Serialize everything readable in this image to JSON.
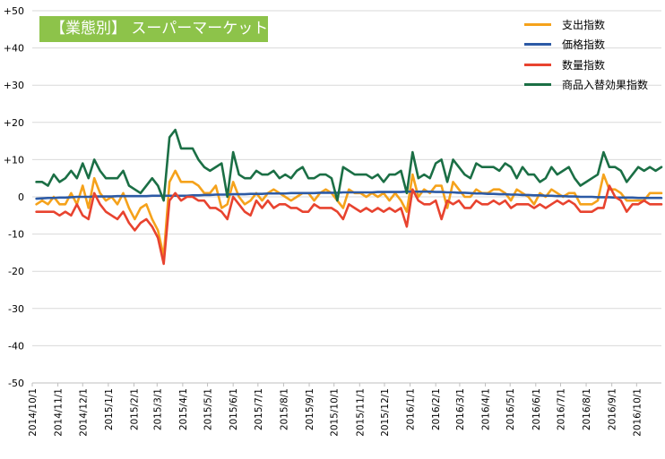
{
  "chart_data": {
    "type": "line",
    "title": "【業態別】 スーパーマーケット",
    "ylim": [
      -50,
      50
    ],
    "y_ticks": [
      "+50",
      "+40",
      "+30",
      "+20",
      "+10",
      "0",
      "-10",
      "-20",
      "-30",
      "-40",
      "-50"
    ],
    "y_tick_values": [
      50,
      40,
      30,
      20,
      10,
      0,
      -10,
      -20,
      -30,
      -40,
      -50
    ],
    "x_range": [
      "2014-10-01",
      "2016-10-31"
    ],
    "x_ticks": [
      {
        "label": "2014/10/1",
        "date": "2014-10-01"
      },
      {
        "label": "2014/11/1",
        "date": "2014-11-01"
      },
      {
        "label": "2014/12/1",
        "date": "2014-12-01"
      },
      {
        "label": "2015/1/1",
        "date": "2015-01-01"
      },
      {
        "label": "2015/2/1",
        "date": "2015-02-01"
      },
      {
        "label": "2015/3/1",
        "date": "2015-03-01"
      },
      {
        "label": "2015/4/1",
        "date": "2015-04-01"
      },
      {
        "label": "2015/5/1",
        "date": "2015-05-01"
      },
      {
        "label": "2015/6/1",
        "date": "2015-06-01"
      },
      {
        "label": "2015/7/1",
        "date": "2015-07-01"
      },
      {
        "label": "2015/8/1",
        "date": "2015-08-01"
      },
      {
        "label": "2015/9/1",
        "date": "2015-09-01"
      },
      {
        "label": "2015/10/1",
        "date": "2015-10-01"
      },
      {
        "label": "2015/11/1",
        "date": "2015-11-01"
      },
      {
        "label": "2015/12/1",
        "date": "2015-12-01"
      },
      {
        "label": "2016/1/1",
        "date": "2016-01-01"
      },
      {
        "label": "2016/2/1",
        "date": "2016-02-01"
      },
      {
        "label": "2016/3/1",
        "date": "2016-03-01"
      },
      {
        "label": "2016/4/1",
        "date": "2016-04-01"
      },
      {
        "label": "2016/5/1",
        "date": "2016-05-01"
      },
      {
        "label": "2016/6/1",
        "date": "2016-06-01"
      },
      {
        "label": "2016/7/1",
        "date": "2016-07-01"
      },
      {
        "label": "2016/8/1",
        "date": "2016-08-01"
      },
      {
        "label": "2016/9/1",
        "date": "2016-09-01"
      },
      {
        "label": "2016/10/1",
        "date": "2016-10-01"
      }
    ],
    "grid": true,
    "legend_position": "top-right",
    "x": [
      "2014-10-06",
      "2014-10-13",
      "2014-10-20",
      "2014-10-27",
      "2014-11-03",
      "2014-11-10",
      "2014-11-17",
      "2014-11-24",
      "2014-12-01",
      "2014-12-08",
      "2014-12-15",
      "2014-12-22",
      "2014-12-29",
      "2015-01-05",
      "2015-01-12",
      "2015-01-19",
      "2015-01-26",
      "2015-02-02",
      "2015-02-09",
      "2015-02-16",
      "2015-02-23",
      "2015-03-02",
      "2015-03-09",
      "2015-03-16",
      "2015-03-23",
      "2015-03-30",
      "2015-04-06",
      "2015-04-13",
      "2015-04-20",
      "2015-04-27",
      "2015-05-04",
      "2015-05-11",
      "2015-05-18",
      "2015-05-25",
      "2015-06-01",
      "2015-06-08",
      "2015-06-15",
      "2015-06-22",
      "2015-06-29",
      "2015-07-06",
      "2015-07-13",
      "2015-07-20",
      "2015-07-27",
      "2015-08-03",
      "2015-08-10",
      "2015-08-17",
      "2015-08-24",
      "2015-08-31",
      "2015-09-07",
      "2015-09-14",
      "2015-09-21",
      "2015-09-28",
      "2015-10-05",
      "2015-10-12",
      "2015-10-19",
      "2015-10-26",
      "2015-11-02",
      "2015-11-09",
      "2015-11-16",
      "2015-11-23",
      "2015-11-30",
      "2015-12-07",
      "2015-12-14",
      "2015-12-21",
      "2015-12-28",
      "2016-01-04",
      "2016-01-11",
      "2016-01-18",
      "2016-01-25",
      "2016-02-01",
      "2016-02-08",
      "2016-02-15",
      "2016-02-22",
      "2016-02-29",
      "2016-03-07",
      "2016-03-14",
      "2016-03-21",
      "2016-03-28",
      "2016-04-04",
      "2016-04-11",
      "2016-04-18",
      "2016-04-25",
      "2016-05-02",
      "2016-05-09",
      "2016-05-16",
      "2016-05-23",
      "2016-05-30",
      "2016-06-06",
      "2016-06-13",
      "2016-06-20",
      "2016-06-27",
      "2016-07-04",
      "2016-07-11",
      "2016-07-18",
      "2016-07-25",
      "2016-08-01",
      "2016-08-08",
      "2016-08-15",
      "2016-08-22",
      "2016-08-29",
      "2016-09-05",
      "2016-09-12",
      "2016-09-19",
      "2016-09-26",
      "2016-10-03",
      "2016-10-10",
      "2016-10-17",
      "2016-10-24",
      "2016-10-31"
    ],
    "series": [
      {
        "name": "支出指数",
        "color": "#f5a21b",
        "values": [
          -2,
          -1,
          -2,
          0,
          -2,
          -2,
          1,
          -2,
          3,
          -3,
          5,
          1,
          -1,
          0,
          -2,
          1,
          -3,
          -6,
          -3,
          -2,
          -6,
          -9,
          -16,
          4,
          7,
          4,
          4,
          4,
          3,
          1,
          1,
          3,
          -3,
          -2,
          4,
          0,
          -2,
          -1,
          1,
          -1,
          1,
          2,
          1,
          0,
          -1,
          0,
          1,
          1,
          -1,
          1,
          2,
          1,
          -1,
          -3,
          2,
          1,
          1,
          0,
          1,
          0,
          1,
          -1,
          1,
          -1,
          -4,
          6,
          0,
          2,
          1,
          3,
          3,
          -3,
          4,
          2,
          0,
          0,
          2,
          1,
          1,
          2,
          2,
          1,
          -1,
          2,
          1,
          0,
          -2,
          1,
          0,
          2,
          1,
          0,
          1,
          1,
          -2,
          -2,
          -2,
          -1,
          6,
          2,
          2,
          1,
          -1,
          -1,
          -1,
          -1,
          1,
          1,
          1
        ]
      },
      {
        "name": "価格指数",
        "color": "#2c5aa5",
        "values": [
          -0.5,
          -0.4,
          -0.3,
          -0.3,
          -0.2,
          -0.2,
          -0.1,
          0,
          0,
          0,
          0.1,
          0.1,
          0.1,
          0.1,
          0.2,
          0.2,
          0.2,
          0.2,
          0.2,
          0.2,
          0.3,
          0.3,
          0.3,
          0.3,
          0.3,
          0.3,
          0.3,
          0.4,
          0.4,
          0.5,
          0.5,
          0.6,
          0.6,
          0.6,
          0.7,
          0.7,
          0.7,
          0.8,
          0.8,
          0.8,
          0.9,
          0.9,
          0.9,
          0.9,
          1,
          1,
          1,
          1,
          1,
          1.1,
          1.1,
          1.1,
          1.1,
          1.2,
          1.2,
          1.2,
          1.2,
          1.2,
          1.2,
          1.3,
          1.3,
          1.3,
          1.3,
          1.3,
          1.4,
          1.4,
          1.4,
          1.4,
          1.4,
          1.3,
          1.3,
          1.2,
          1.2,
          1.1,
          1.1,
          1,
          0.9,
          0.9,
          0.8,
          0.8,
          0.7,
          0.7,
          0.6,
          0.6,
          0.5,
          0.5,
          0.4,
          0.4,
          0.3,
          0.3,
          0.2,
          0.2,
          0.1,
          0.1,
          0,
          0,
          0,
          -0.1,
          -0.1,
          -0.1,
          -0.2,
          -0.2,
          -0.2,
          -0.2,
          -0.3,
          -0.3,
          -0.3,
          -0.3,
          -0.3
        ]
      },
      {
        "name": "数量指数",
        "color": "#e8432f",
        "values": [
          -4,
          -4,
          -4,
          -4,
          -5,
          -4,
          -5,
          -2,
          -5,
          -6,
          1,
          -2,
          -4,
          -5,
          -6,
          -4,
          -7,
          -9,
          -7,
          -6,
          -8,
          -11,
          -18,
          -1,
          1,
          -1,
          0,
          0,
          -1,
          -1,
          -3,
          -3,
          -4,
          -6,
          0,
          -2,
          -4,
          -5,
          -1,
          -3,
          -1,
          -3,
          -2,
          -2,
          -3,
          -3,
          -4,
          -4,
          -2,
          -3,
          -3,
          -3,
          -4,
          -6,
          -2,
          -3,
          -4,
          -3,
          -4,
          -3,
          -4,
          -3,
          -4,
          -3,
          -8,
          2,
          -1,
          -2,
          -2,
          -1,
          -6,
          -1,
          -2,
          -1,
          -3,
          -3,
          -1,
          -2,
          -2,
          -1,
          -2,
          -1,
          -3,
          -2,
          -2,
          -2,
          -3,
          -2,
          -3,
          -2,
          -1,
          -2,
          -1,
          -2,
          -4,
          -4,
          -4,
          -3,
          -3,
          3,
          0,
          -1,
          -4,
          -2,
          -2,
          -1,
          -2,
          -2,
          -2
        ]
      },
      {
        "name": "商品入替効果指数",
        "color": "#1b6f45",
        "values": [
          4,
          4,
          3,
          6,
          4,
          5,
          7,
          5,
          9,
          5,
          10,
          7,
          5,
          5,
          5,
          7,
          3,
          2,
          1,
          3,
          5,
          3,
          -1,
          16,
          18,
          13,
          13,
          13,
          10,
          8,
          7,
          8,
          9,
          0,
          12,
          6,
          5,
          5,
          7,
          6,
          6,
          7,
          5,
          6,
          5,
          7,
          8,
          5,
          5,
          6,
          6,
          5,
          -1,
          8,
          7,
          6,
          6,
          6,
          5,
          6,
          4,
          6,
          6,
          7,
          1,
          12,
          5,
          6,
          5,
          9,
          10,
          4,
          10,
          8,
          6,
          5,
          9,
          8,
          8,
          8,
          7,
          9,
          8,
          5,
          8,
          6,
          6,
          4,
          5,
          8,
          6,
          7,
          8,
          5,
          3,
          4,
          5,
          6,
          12,
          8,
          8,
          7,
          4,
          6,
          8,
          7,
          8,
          7,
          8
        ]
      }
    ]
  }
}
